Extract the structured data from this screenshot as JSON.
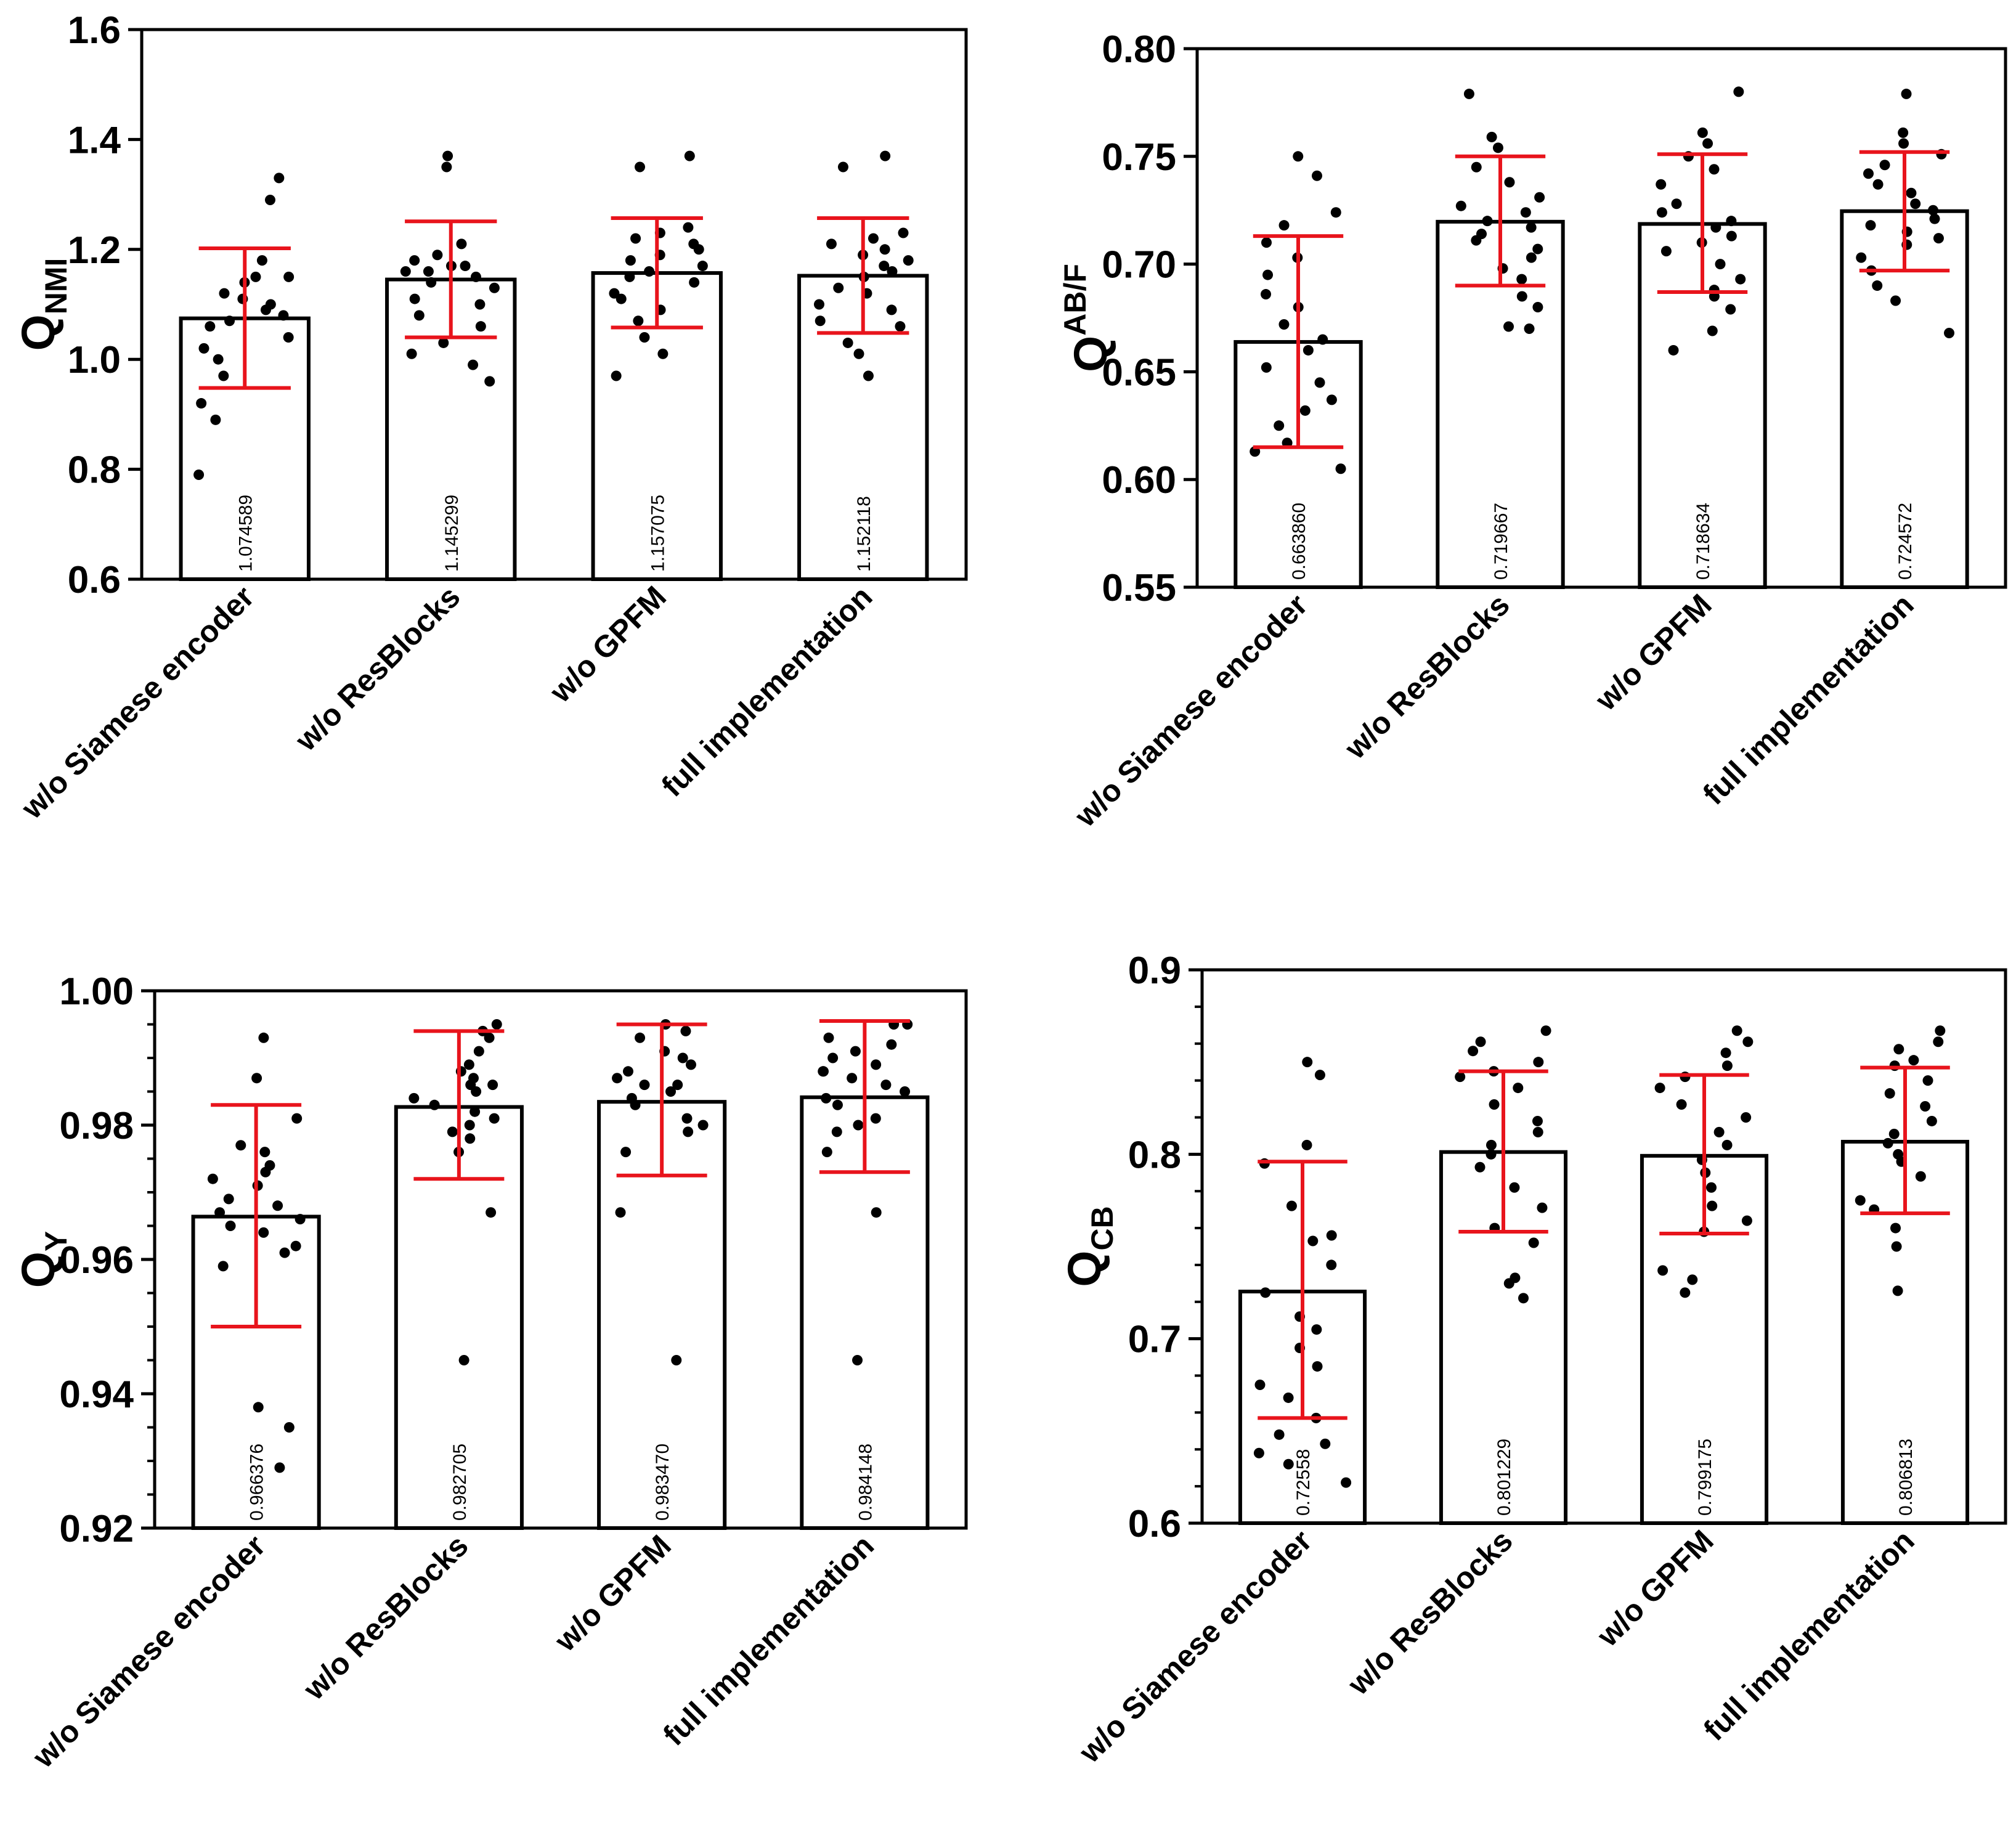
{
  "chart_data": [
    {
      "type": "bar",
      "id": "qnmi",
      "ylabel": "Q",
      "ylabel_sub": "NMI",
      "ylabel_sup": "",
      "ylim": [
        0.6,
        1.6
      ],
      "ticks": [
        0.6,
        0.8,
        1.0,
        1.2,
        1.4,
        1.6
      ],
      "tick_labels": [
        "0.6",
        "0.8",
        "1.0",
        "1.2",
        "1.4",
        "1.6"
      ],
      "minor_ticks": 0,
      "categories": [
        "w/o Siamese encoder",
        "w/o ResBlocks",
        "w/o GPFM",
        "full implementation"
      ],
      "values": [
        1.074589,
        1.145299,
        1.157075,
        1.152118
      ],
      "value_labels": [
        "1.074589",
        "1.145299",
        "1.157075",
        "1.152118"
      ],
      "errors": [
        [
          0.948,
          1.202
        ],
        [
          1.04,
          1.251
        ],
        [
          1.058,
          1.257
        ],
        [
          1.048,
          1.257
        ]
      ],
      "points": [
        [
          0.79,
          0.89,
          0.92,
          0.97,
          1.0,
          1.02,
          1.04,
          1.06,
          1.07,
          1.08,
          1.09,
          1.1,
          1.11,
          1.12,
          1.14,
          1.15,
          1.15,
          1.18,
          1.29,
          1.33
        ],
        [
          0.96,
          0.99,
          1.01,
          1.03,
          1.06,
          1.08,
          1.1,
          1.11,
          1.13,
          1.14,
          1.15,
          1.16,
          1.16,
          1.17,
          1.17,
          1.18,
          1.19,
          1.21,
          1.35,
          1.37
        ],
        [
          0.97,
          1.01,
          1.04,
          1.07,
          1.09,
          1.11,
          1.12,
          1.14,
          1.15,
          1.16,
          1.17,
          1.18,
          1.19,
          1.2,
          1.21,
          1.22,
          1.23,
          1.24,
          1.35,
          1.37
        ],
        [
          0.97,
          1.01,
          1.03,
          1.06,
          1.07,
          1.09,
          1.1,
          1.12,
          1.13,
          1.15,
          1.16,
          1.17,
          1.18,
          1.19,
          1.2,
          1.21,
          1.22,
          1.23,
          1.35,
          1.37
        ]
      ]
    },
    {
      "type": "bar",
      "id": "qabf",
      "ylabel": "Q",
      "ylabel_sub": "",
      "ylabel_sup": "AB/F",
      "ylim": [
        0.55,
        0.8
      ],
      "ticks": [
        0.55,
        0.6,
        0.65,
        0.7,
        0.75,
        0.8
      ],
      "tick_labels": [
        "0.55",
        "0.60",
        "0.65",
        "0.70",
        "0.75",
        "0.80"
      ],
      "minor_ticks": 0,
      "categories": [
        "w/o Siamese encoder",
        "w/o ResBlocks",
        "w/o GPFM",
        "full implementation"
      ],
      "values": [
        0.66386,
        0.719667,
        0.718634,
        0.724572
      ],
      "value_labels": [
        "0.663860",
        "0.719667",
        "0.718634",
        "0.724572"
      ],
      "errors": [
        [
          0.615,
          0.713
        ],
        [
          0.69,
          0.75
        ],
        [
          0.687,
          0.751
        ],
        [
          0.697,
          0.752
        ]
      ],
      "points": [
        [
          0.605,
          0.613,
          0.617,
          0.625,
          0.632,
          0.637,
          0.645,
          0.652,
          0.66,
          0.665,
          0.672,
          0.68,
          0.686,
          0.695,
          0.703,
          0.71,
          0.718,
          0.724,
          0.741,
          0.75
        ],
        [
          0.67,
          0.671,
          0.68,
          0.685,
          0.693,
          0.698,
          0.703,
          0.707,
          0.711,
          0.714,
          0.717,
          0.72,
          0.724,
          0.727,
          0.731,
          0.738,
          0.745,
          0.754,
          0.759,
          0.779
        ],
        [
          0.66,
          0.669,
          0.679,
          0.685,
          0.688,
          0.693,
          0.7,
          0.706,
          0.71,
          0.713,
          0.717,
          0.72,
          0.724,
          0.728,
          0.737,
          0.744,
          0.75,
          0.756,
          0.761,
          0.78
        ],
        [
          0.668,
          0.683,
          0.69,
          0.697,
          0.703,
          0.709,
          0.712,
          0.715,
          0.718,
          0.721,
          0.725,
          0.728,
          0.733,
          0.737,
          0.742,
          0.746,
          0.751,
          0.756,
          0.761,
          0.779
        ]
      ]
    },
    {
      "type": "bar",
      "id": "qy",
      "ylabel": "Q",
      "ylabel_sub": "Y",
      "ylabel_sup": "",
      "ylim": [
        0.92,
        1.0
      ],
      "ticks": [
        0.92,
        0.94,
        0.96,
        0.98,
        1.0
      ],
      "tick_labels": [
        "0.92",
        "0.94",
        "0.96",
        "0.98",
        "1.00"
      ],
      "minor_ticks": 3,
      "categories": [
        "w/o Siamese encoder",
        "w/o ResBlocks",
        "w/o GPFM",
        "full implementation"
      ],
      "values": [
        0.966376,
        0.982705,
        0.98347,
        0.984148
      ],
      "value_labels": [
        "0.966376",
        "0.982705",
        "0.983470",
        "0.984148"
      ],
      "errors": [
        [
          0.95,
          0.983
        ],
        [
          0.972,
          0.994
        ],
        [
          0.9725,
          0.995
        ],
        [
          0.973,
          0.9955
        ]
      ],
      "points": [
        [
          0.929,
          0.935,
          0.938,
          0.959,
          0.961,
          0.962,
          0.964,
          0.965,
          0.966,
          0.967,
          0.968,
          0.969,
          0.971,
          0.972,
          0.973,
          0.974,
          0.976,
          0.977,
          0.981,
          0.987,
          0.993
        ],
        [
          0.945,
          0.967,
          0.976,
          0.978,
          0.979,
          0.98,
          0.981,
          0.982,
          0.983,
          0.984,
          0.985,
          0.986,
          0.986,
          0.987,
          0.988,
          0.989,
          0.991,
          0.993,
          0.994,
          0.995
        ],
        [
          0.945,
          0.967,
          0.976,
          0.979,
          0.98,
          0.981,
          0.983,
          0.984,
          0.985,
          0.986,
          0.986,
          0.987,
          0.988,
          0.989,
          0.99,
          0.991,
          0.993,
          0.994,
          0.995
        ],
        [
          0.945,
          0.967,
          0.976,
          0.979,
          0.98,
          0.981,
          0.983,
          0.984,
          0.985,
          0.986,
          0.987,
          0.988,
          0.988,
          0.989,
          0.99,
          0.991,
          0.992,
          0.993,
          0.995,
          0.995
        ]
      ]
    },
    {
      "type": "bar",
      "id": "qcb",
      "ylabel": "Q",
      "ylabel_sub": "CB",
      "ylabel_sup": "",
      "ylim": [
        0.6,
        0.9
      ],
      "ticks": [
        0.6,
        0.7,
        0.8,
        0.9
      ],
      "tick_labels": [
        "0.6",
        "0.7",
        "0.8",
        "0.9"
      ],
      "minor_ticks": 4,
      "categories": [
        "w/o Siamese encoder",
        "w/o ResBlocks",
        "w/o GPFM",
        "full implementation"
      ],
      "values": [
        0.72558,
        0.801229,
        0.799175,
        0.806813
      ],
      "value_labels": [
        "0.72558",
        "0.801229",
        "0.799175",
        "0.806813"
      ],
      "errors": [
        [
          0.657,
          0.796
        ],
        [
          0.758,
          0.845
        ],
        [
          0.757,
          0.843
        ],
        [
          0.768,
          0.847
        ]
      ],
      "points": [
        [
          0.622,
          0.632,
          0.638,
          0.643,
          0.648,
          0.657,
          0.668,
          0.675,
          0.685,
          0.695,
          0.705,
          0.712,
          0.725,
          0.74,
          0.753,
          0.756,
          0.772,
          0.795,
          0.805,
          0.843,
          0.85
        ],
        [
          0.722,
          0.73,
          0.733,
          0.752,
          0.76,
          0.771,
          0.782,
          0.793,
          0.8,
          0.805,
          0.812,
          0.818,
          0.827,
          0.836,
          0.842,
          0.845,
          0.85,
          0.856,
          0.861,
          0.867
        ],
        [
          0.725,
          0.732,
          0.737,
          0.758,
          0.764,
          0.772,
          0.782,
          0.79,
          0.797,
          0.805,
          0.812,
          0.82,
          0.827,
          0.836,
          0.842,
          0.848,
          0.855,
          0.861,
          0.867
        ],
        [
          0.726,
          0.75,
          0.76,
          0.77,
          0.775,
          0.788,
          0.796,
          0.8,
          0.806,
          0.811,
          0.818,
          0.826,
          0.833,
          0.84,
          0.848,
          0.851,
          0.857,
          0.861,
          0.867
        ]
      ]
    }
  ]
}
